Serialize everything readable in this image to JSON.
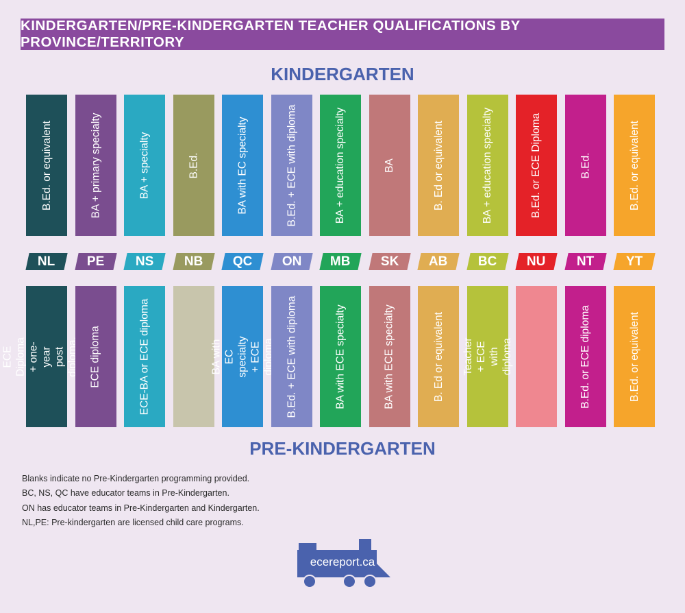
{
  "header": {
    "title": "KINDERGARTEN/PRE-KINDERGARTEN TEACHER QUALIFICATIONS BY PROVINCE/TERRITORY"
  },
  "colors": {
    "header_bg": "#8a4a9e",
    "section_title": "#4a62ad",
    "background": "#efe6f1",
    "logo": "#4a62ad"
  },
  "kindergarten": {
    "title": "KINDERGARTEN",
    "items": [
      {
        "text": "B.Ed. or equivalent",
        "color": "#1e5059"
      },
      {
        "text": "BA + primary specialty",
        "color": "#7a4d8f"
      },
      {
        "text": "BA + specialty",
        "color": "#2aa9c2"
      },
      {
        "text": "B.Ed.",
        "color": "#999a5f"
      },
      {
        "text": "BA with EC specialty",
        "color": "#2e8fd2"
      },
      {
        "text": "B.Ed. + ECE with diploma",
        "color": "#7f87c6"
      },
      {
        "text": "BA + education specialty",
        "color": "#22a559"
      },
      {
        "text": "BA",
        "color": "#c07879"
      },
      {
        "text": "B. Ed or equivalent",
        "color": "#e0ad52"
      },
      {
        "text": "BA + education specialty",
        "color": "#b5c23b"
      },
      {
        "text": "B.Ed. or ECE Diploma",
        "color": "#e42228"
      },
      {
        "text": "B.Ed.",
        "color": "#c21f8c"
      },
      {
        "text": "B.Ed. or equivalent",
        "color": "#f6a52b"
      }
    ]
  },
  "provinces": [
    {
      "code": "NL",
      "color": "#1e5059"
    },
    {
      "code": "PE",
      "color": "#7a4d8f"
    },
    {
      "code": "NS",
      "color": "#2aa9c2"
    },
    {
      "code": "NB",
      "color": "#999a5f"
    },
    {
      "code": "QC",
      "color": "#2e8fd2"
    },
    {
      "code": "ON",
      "color": "#7f87c6"
    },
    {
      "code": "MB",
      "color": "#22a559"
    },
    {
      "code": "SK",
      "color": "#c07879"
    },
    {
      "code": "AB",
      "color": "#e0ad52"
    },
    {
      "code": "BC",
      "color": "#b5c23b"
    },
    {
      "code": "NU",
      "color": "#e42228"
    },
    {
      "code": "NT",
      "color": "#c21f8c"
    },
    {
      "code": "YT",
      "color": "#f6a52b"
    }
  ],
  "pre_kindergarten": {
    "title": "PRE-KINDERGARTEN",
    "items": [
      {
        "text": "ECE Diploma + one-year post diploma, B.Ed.",
        "color": "#1e5059"
      },
      {
        "text": "ECE diploma",
        "color": "#7a4d8f"
      },
      {
        "text": "ECE-BA or ECE diploma",
        "color": "#2aa9c2"
      },
      {
        "text": "",
        "color": "#c8c5ac"
      },
      {
        "text": "BA with EC specialty + ECE diploma",
        "color": "#2e8fd2"
      },
      {
        "text": "B.Ed. + ECE with diploma",
        "color": "#7f87c6"
      },
      {
        "text": "BA with ECE specialty",
        "color": "#22a559"
      },
      {
        "text": "BA with ECE specialty",
        "color": "#c07879"
      },
      {
        "text": "B. Ed or equivalent",
        "color": "#e0ad52"
      },
      {
        "text": "Teacher + ECE with diploma",
        "color": "#b5c23b"
      },
      {
        "text": "",
        "color": "#ef8790"
      },
      {
        "text": "B.Ed. or ECE diploma",
        "color": "#c21f8c"
      },
      {
        "text": "B.Ed. or equivalent",
        "color": "#f6a52b"
      }
    ]
  },
  "notes": [
    "Blanks indicate no Pre-Kindergarten programming provided.",
    "BC, NS, QC have educator teams in Pre-Kindergarten.",
    "ON has educator teams in Pre-Kindergarten and Kindergarten.",
    "NL,PE: Pre-kindergarten are licensed child care programs."
  ],
  "logo": {
    "text": "ecereport.ca",
    "icon": "train-icon"
  }
}
